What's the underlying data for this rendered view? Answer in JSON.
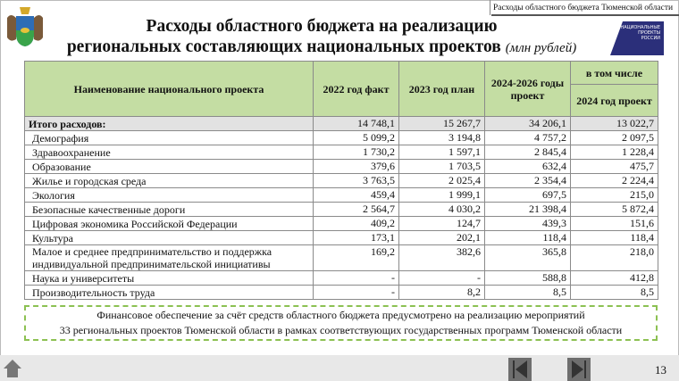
{
  "header": {
    "section": "Расходы областного бюджета Тюменской области",
    "title_line1": "Расходы областного бюджета на реализацию",
    "title_line2": "региональных составляющих национальных проектов",
    "unit": "(млн рублей)",
    "logo_text": "НАЦИОНАЛЬНЫЕ ПРОЕКТЫ РОССИИ"
  },
  "table": {
    "columns": [
      "Наименование национального проекта",
      "2022 год факт",
      "2023 год план",
      "2024-2026 годы проект",
      "в том числе",
      "2024 год проект"
    ],
    "total": {
      "label": "Итого расходов:",
      "values": [
        "14 748,1",
        "15 267,7",
        "34 206,1",
        "13 022,7"
      ]
    },
    "rows": [
      {
        "label": "Демография",
        "values": [
          "5 099,2",
          "3 194,8",
          "4 757,2",
          "2 097,5"
        ]
      },
      {
        "label": "Здравоохранение",
        "values": [
          "1 730,2",
          "1 597,1",
          "2 845,4",
          "1 228,4"
        ]
      },
      {
        "label": "Образование",
        "values": [
          "379,6",
          "1 703,5",
          "632,4",
          "475,7"
        ]
      },
      {
        "label": "Жилье и городская среда",
        "values": [
          "3 763,5",
          "2 025,4",
          "2 354,4",
          "2 224,4"
        ]
      },
      {
        "label": "Экология",
        "values": [
          "459,4",
          "1 999,1",
          "697,5",
          "215,0"
        ]
      },
      {
        "label": "Безопасные качественные дороги",
        "values": [
          "2 564,7",
          "4 030,2",
          "21 398,4",
          "5 872,4"
        ]
      },
      {
        "label": "Цифровая экономика Российской Федерации",
        "values": [
          "409,2",
          "124,7",
          "439,3",
          "151,6"
        ]
      },
      {
        "label": "Культура",
        "values": [
          "173,1",
          "202,1",
          "118,4",
          "118,4"
        ]
      },
      {
        "label": "Малое и среднее предпринимательство и поддержка индивидуальной предпринимательской инициативы",
        "values": [
          "169,2",
          "382,6",
          "365,8",
          "218,0"
        ]
      },
      {
        "label": "Наука и университеты",
        "values": [
          "-",
          "-",
          "588,8",
          "412,8"
        ]
      },
      {
        "label": "Производительность труда",
        "values": [
          "-",
          "8,2",
          "8,5",
          "8,5"
        ]
      }
    ]
  },
  "note": {
    "line1": "Финансовое обеспечение за счёт средств областного бюджета предусмотрено на реализацию мероприятий",
    "line2": "33 региональных проектов Тюменской области в рамках соответствующих государственных программ Тюменской области"
  },
  "footer": {
    "page": "13"
  },
  "colors": {
    "header_green": "#c4dda3",
    "total_gray": "#e2e2e2",
    "dashed": "#8cc152",
    "logo": "#2b2f7a"
  }
}
